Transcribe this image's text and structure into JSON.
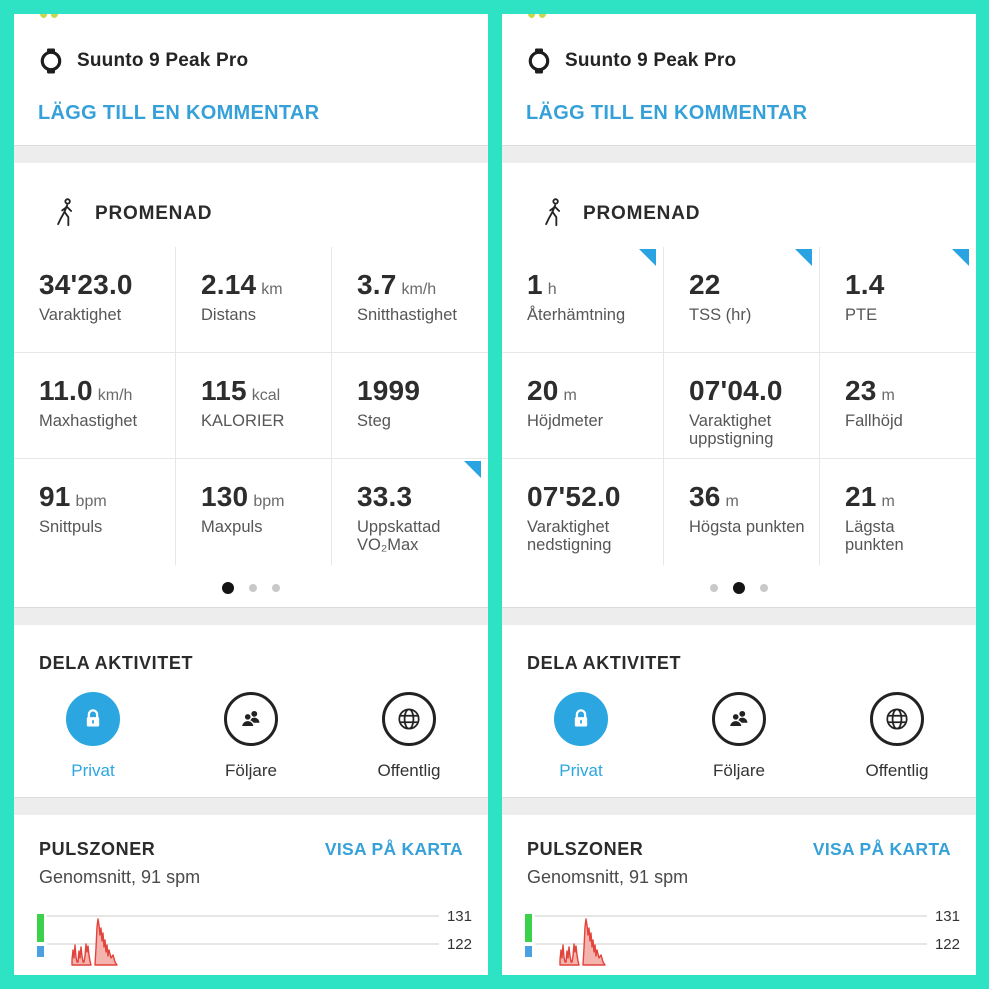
{
  "colors": {
    "background_teal": "#2de3c3",
    "link_blue": "#36a1d9",
    "selected_blue": "#2ba6e0",
    "flag_blue": "#29a3e2",
    "text_dark": "#2d2d2d",
    "label_gray": "#565656",
    "band_gray": "#ededed",
    "hr_red": "#e2433b",
    "zone_green": "#3bd14b",
    "zone_blue": "#4aa0e0"
  },
  "ui": {
    "device": "Suunto 9 Peak Pro",
    "comment_link": "LÄGG TILL EN KOMMENTAR",
    "activity": "PROMENAD",
    "share_title": "DELA AKTIVITET",
    "pulse_title": "PULSZONER",
    "pulse_subtitle": "Genomsnitt, 91 spm",
    "map_link": "VISA PÅ KARTA"
  },
  "share_options": [
    {
      "label": "Privat",
      "icon": "lock",
      "selected": true
    },
    {
      "label": "Följare",
      "icon": "people",
      "selected": false
    },
    {
      "label": "Offentlig",
      "icon": "globe",
      "selected": false
    }
  ],
  "panels": [
    {
      "active_dot": 0,
      "stats": [
        {
          "value": "34'23.0",
          "unit": "",
          "label": "Varaktighet",
          "flag": false
        },
        {
          "value": "2.14",
          "unit": "km",
          "label": "Distans",
          "flag": false
        },
        {
          "value": "3.7",
          "unit": "km/h",
          "label": "Snitthastighet",
          "flag": false
        },
        {
          "value": "11.0",
          "unit": "km/h",
          "label": "Maxhastighet",
          "flag": false
        },
        {
          "value": "115",
          "unit": "kcal",
          "label": "KALORIER",
          "flag": false
        },
        {
          "value": "1999",
          "unit": "",
          "label": "Steg",
          "flag": false
        },
        {
          "value": "91",
          "unit": "bpm",
          "label": "Snittpuls",
          "flag": false
        },
        {
          "value": "130",
          "unit": "bpm",
          "label": "Maxpuls",
          "flag": false
        },
        {
          "value": "33.3",
          "unit": "",
          "label": "Uppskattad VO₂Max",
          "flag": true
        }
      ]
    },
    {
      "active_dot": 1,
      "stats": [
        {
          "value": "1",
          "unit": "h",
          "label": "Återhämtning",
          "flag": true
        },
        {
          "value": "22",
          "unit": "",
          "label": "TSS (hr)",
          "flag": true
        },
        {
          "value": "1.4",
          "unit": "",
          "label": "PTE",
          "flag": true
        },
        {
          "value": "20",
          "unit": "m",
          "label": "Höjdmeter",
          "flag": false
        },
        {
          "value": "07'04.0",
          "unit": "",
          "label": "Varaktighet uppstigning",
          "flag": false
        },
        {
          "value": "23",
          "unit": "m",
          "label": "Fallhöjd",
          "flag": false
        },
        {
          "value": "07'52.0",
          "unit": "",
          "label": "Varaktighet nedstigning",
          "flag": false
        },
        {
          "value": "36",
          "unit": "m",
          "label": "Högsta punkten",
          "flag": false
        },
        {
          "value": "21",
          "unit": "m",
          "label": "Lägsta punkten",
          "flag": false
        }
      ]
    }
  ],
  "chart_data": {
    "type": "area",
    "title": "PULSZONER",
    "subtitle": "Genomsnitt, 91 spm",
    "average_bpm": 91,
    "average_unit": "spm",
    "y_ticks": [
      "131",
      "122"
    ],
    "y_tick_values": [
      131,
      122
    ],
    "grid": true,
    "legend_position": "left",
    "zone_legend": [
      {
        "color": "#3bd14b",
        "shape": "tall-bar"
      },
      {
        "color": "#4aa0e0",
        "shape": "small-square"
      }
    ],
    "series": [
      {
        "name": "Puls",
        "color": "#e2433b",
        "description": "short low spikes near 122 bpm followed by one jagged peak reaching about 131 bpm, rest of recording below visible range"
      }
    ],
    "cluster_polygon": [
      [
        58,
        71
      ],
      [
        58,
        66
      ],
      [
        59,
        56
      ],
      [
        60,
        64
      ],
      [
        61,
        51
      ],
      [
        62,
        63
      ],
      [
        63,
        68
      ],
      [
        64,
        68
      ],
      [
        65,
        57
      ],
      [
        66,
        64
      ],
      [
        67,
        53
      ],
      [
        68,
        62
      ],
      [
        69,
        68
      ],
      [
        70,
        68
      ],
      [
        71,
        62
      ],
      [
        72,
        50
      ],
      [
        73,
        58
      ],
      [
        74,
        52
      ],
      [
        75,
        61
      ],
      [
        76,
        67
      ],
      [
        77,
        71
      ]
    ],
    "peak_polygon": [
      [
        81,
        71
      ],
      [
        82,
        54
      ],
      [
        83,
        33
      ],
      [
        84,
        25
      ],
      [
        85,
        31
      ],
      [
        86,
        41
      ],
      [
        87,
        34
      ],
      [
        88,
        47
      ],
      [
        89,
        39
      ],
      [
        90,
        53
      ],
      [
        91,
        46
      ],
      [
        92,
        58
      ],
      [
        93,
        51
      ],
      [
        94,
        62
      ],
      [
        95,
        56
      ],
      [
        97,
        64
      ],
      [
        99,
        61
      ],
      [
        101,
        68
      ],
      [
        103,
        71
      ]
    ]
  }
}
